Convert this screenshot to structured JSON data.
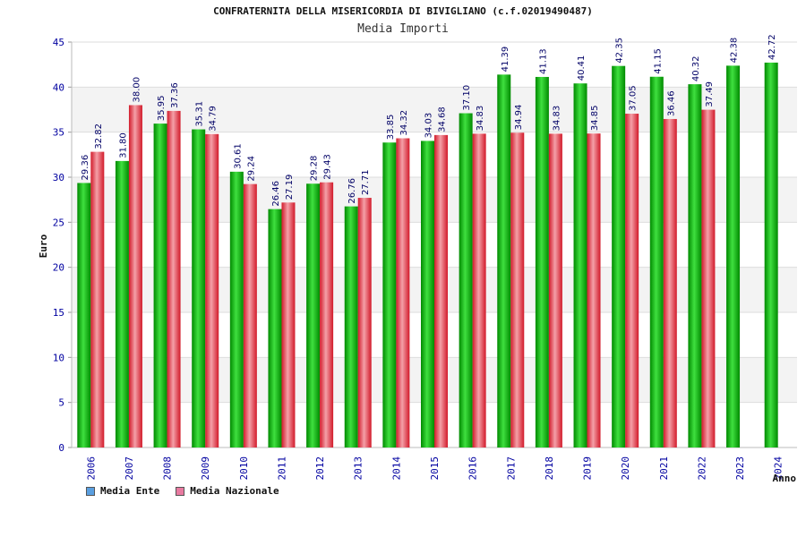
{
  "chart_data": {
    "type": "bar",
    "title": "CONFRATERNITA DELLA MISERICORDIA DI BIVIGLIANO (c.f.02019490487)",
    "subtitle": "Media Importi",
    "xlabel": "Anno",
    "ylabel": "Euro",
    "ylim": [
      0,
      45
    ],
    "yticks": [
      "0",
      "5",
      "10",
      "15",
      "20",
      "25",
      "30",
      "35",
      "40",
      "45"
    ],
    "grid": true,
    "legend_position": "bottom-left",
    "categories": [
      "2006",
      "2007",
      "2008",
      "2009",
      "2010",
      "2011",
      "2012",
      "2013",
      "2014",
      "2015",
      "2016",
      "2017",
      "2018",
      "2019",
      "2020",
      "2021",
      "2022",
      "2023",
      "2024"
    ],
    "series": [
      {
        "name": "Media Ente",
        "values": [
          29.36,
          31.8,
          35.95,
          35.31,
          30.61,
          26.46,
          29.28,
          26.76,
          33.85,
          34.03,
          37.1,
          41.39,
          41.13,
          40.41,
          42.35,
          41.15,
          40.32,
          42.38,
          42.72
        ],
        "labels": [
          "29.36",
          "31.80",
          "35.95",
          "35.31",
          "30.61",
          "26.46",
          "29.28",
          "26.76",
          "33.85",
          "34.03",
          "37.10",
          "41.39",
          "41.13",
          "40.41",
          "42.35",
          "41.15",
          "40.32",
          "42.38",
          "42.72"
        ]
      },
      {
        "name": "Media Nazionale",
        "values": [
          32.82,
          38.0,
          37.36,
          34.79,
          29.24,
          27.19,
          29.43,
          27.71,
          34.32,
          34.68,
          34.83,
          34.94,
          34.83,
          34.85,
          37.05,
          36.46,
          37.49,
          null,
          null
        ],
        "labels": [
          "32.82",
          "38.00",
          "37.36",
          "34.79",
          "29.24",
          "27.19",
          "29.43",
          "27.71",
          "34.32",
          "34.68",
          "34.83",
          "34.94",
          "34.83",
          "34.85",
          "37.05",
          "36.46",
          "37.49",
          null,
          null
        ]
      }
    ]
  },
  "legend": {
    "items": [
      {
        "label": "Media Ente",
        "color": "#5a9fe0"
      },
      {
        "label": "Media Nazionale",
        "color": "#e87aa0"
      }
    ]
  },
  "colors": {
    "ente_dark": "#008a00",
    "ente_light": "#3fe03f",
    "naz_dark": "#d21a2a",
    "naz_light": "#f4a0a8",
    "axis_text": "#0000a0",
    "grid": "#dddddd",
    "band": "#f3f3f3"
  }
}
